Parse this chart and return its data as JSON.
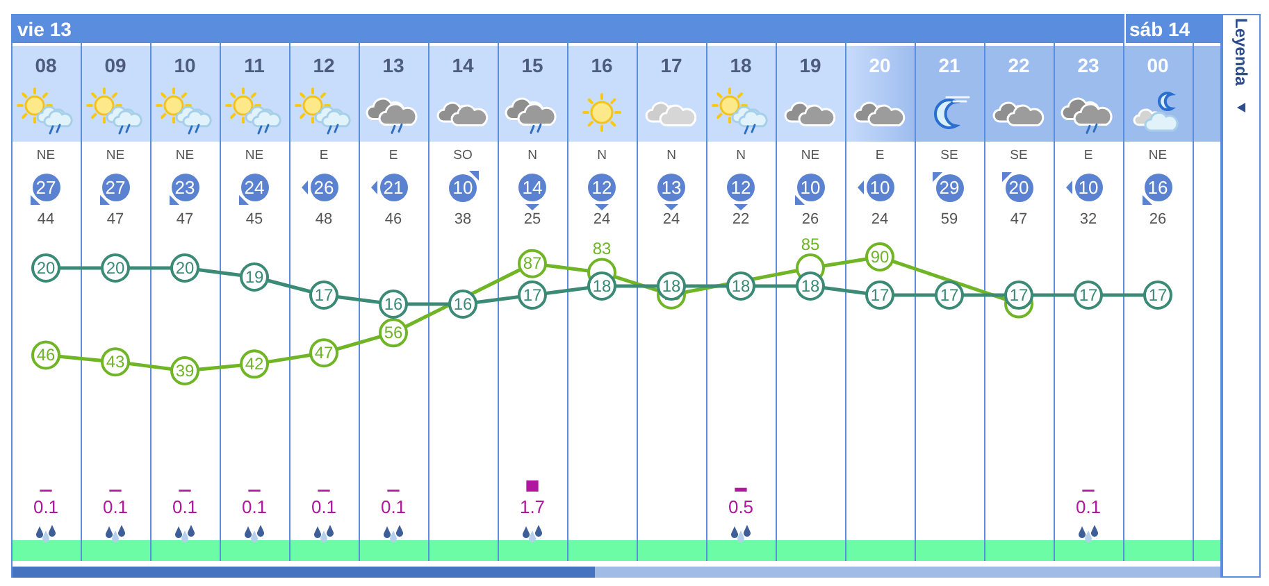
{
  "chart_data": [
    {
      "type": "line",
      "categories": [
        "08",
        "09",
        "10",
        "11",
        "12",
        "13",
        "14",
        "15",
        "16",
        "17",
        "18",
        "19",
        "20",
        "21",
        "22",
        "23",
        "00"
      ],
      "series": [
        {
          "color": "#3a8a76",
          "values": [
            20,
            20,
            20,
            19,
            17,
            16,
            16,
            17,
            18,
            18,
            18,
            18,
            17,
            17,
            17,
            17,
            17
          ]
        },
        {
          "color": "#6fb526",
          "axis": "y2",
          "values": [
            46,
            43,
            39,
            42,
            47,
            56,
            null,
            87,
            83,
            73,
            null,
            85,
            90,
            null,
            69,
            null,
            null
          ]
        }
      ],
      "tick_labels": "x",
      "grid": "x",
      "marker": "circle",
      "data_labels": true,
      "annotations": [
        "NE",
        "NE",
        "NE",
        "NE",
        "E",
        "E",
        "SO",
        "N",
        "N",
        "N",
        "N",
        "NE",
        "E",
        "SE",
        "SE",
        "E",
        "NE",
        "27",
        "27",
        "23",
        "24",
        "26",
        "21",
        "10",
        "14",
        "12",
        "13",
        "12",
        "10",
        "10",
        "29",
        "20",
        "10",
        "16",
        "44",
        "47",
        "47",
        "45",
        "48",
        "46",
        "38",
        "25",
        "24",
        "24",
        "22",
        "26",
        "24",
        "59",
        "47",
        "32",
        "26",
        "vie 13",
        "sáb 14",
        "Leyenda"
      ]
    },
    {
      "type": "bar",
      "categories": [
        "08",
        "09",
        "10",
        "11",
        "12",
        "13",
        "14",
        "15",
        "16",
        "17",
        "18",
        "19",
        "20",
        "21",
        "22",
        "23",
        "00"
      ],
      "values": [
        0.1,
        0.1,
        0.1,
        0.1,
        0.1,
        0.1,
        null,
        1.7,
        null,
        null,
        0.5,
        null,
        null,
        null,
        null,
        0.1,
        null
      ],
      "color": "#b0179e",
      "tick_labels": false,
      "data_labels": true
    }
  ]
}
